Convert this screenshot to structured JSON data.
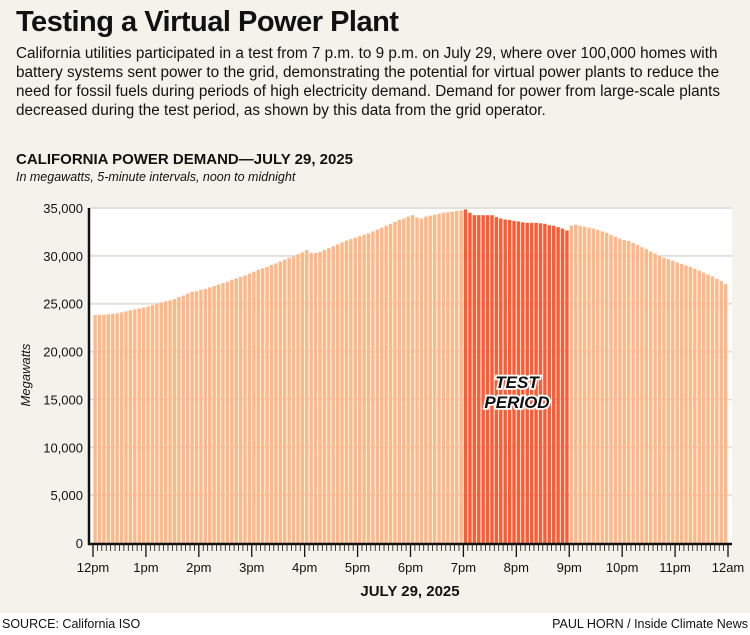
{
  "header": {
    "title": "Testing a Virtual Power Plant",
    "description": "California utilities participated in a test from 7 p.m. to 9 p.m. on July 29, where over 100,000 homes with battery systems sent power to the grid, demonstrating the potential for virtual power plants to reduce the need for fossil fuels during periods of high electricity demand. Demand for power from large-scale plants decreased during the test period, as shown by this data from the grid operator."
  },
  "footer": {
    "source": "SOURCE: California ISO",
    "credit": "PAUL HORN / Inside Climate News"
  },
  "chart_data": {
    "type": "bar",
    "title": "CALIFORNIA POWER DEMAND—JULY 29, 2025",
    "subtitle": "In megawatts, 5-minute intervals, noon to midnight",
    "xlabel": "JULY 29, 2025",
    "ylabel": "Megawatts",
    "ylim": [
      0,
      35000
    ],
    "yticks": [
      "0",
      "5,000",
      "10,000",
      "15,000",
      "20,000",
      "25,000",
      "30,000",
      "35,000"
    ],
    "ytick_values": [
      0,
      5000,
      10000,
      15000,
      20000,
      25000,
      30000,
      35000
    ],
    "xticks": [
      "12pm",
      "1pm",
      "2pm",
      "3pm",
      "4pm",
      "5pm",
      "6pm",
      "7pm",
      "8pm",
      "9pm",
      "10pm",
      "11pm",
      "12am"
    ],
    "grid": true,
    "annotation": {
      "line1": "TEST",
      "line2": "PERIOD",
      "start_index": 84,
      "end_index": 107
    },
    "colors": {
      "normal": "#ffb787",
      "test": "#ff5a32",
      "axis": "#111111",
      "grid": "#e2e2dc"
    },
    "values": [
      23800,
      23850,
      23850,
      23900,
      23950,
      24000,
      24100,
      24200,
      24300,
      24400,
      24500,
      24600,
      24700,
      24850,
      25000,
      25150,
      25250,
      25350,
      25500,
      25700,
      25850,
      26050,
      26250,
      26300,
      26450,
      26550,
      26700,
      26850,
      27000,
      27150,
      27300,
      27500,
      27650,
      27800,
      27950,
      28150,
      28350,
      28550,
      28700,
      28850,
      29050,
      29200,
      29400,
      29600,
      29800,
      29950,
      30150,
      30350,
      30600,
      30300,
      30300,
      30400,
      30600,
      30800,
      31000,
      31200,
      31400,
      31600,
      31750,
      31900,
      32050,
      32200,
      32350,
      32550,
      32750,
      32950,
      33150,
      33350,
      33550,
      33750,
      33900,
      34100,
      34250,
      34000,
      33900,
      34100,
      34200,
      34300,
      34400,
      34500,
      34550,
      34600,
      34700,
      34750,
      34850,
      34500,
      34250,
      34250,
      34250,
      34250,
      34250,
      34050,
      33900,
      33800,
      33750,
      33650,
      33600,
      33500,
      33450,
      33450,
      33450,
      33400,
      33350,
      33200,
      33150,
      33000,
      32850,
      32650,
      33150,
      33250,
      33150,
      33050,
      32950,
      32850,
      32700,
      32550,
      32400,
      32200,
      32000,
      31800,
      31650,
      31550,
      31350,
      31150,
      30900,
      30700,
      30450,
      30250,
      30000,
      29800,
      29650,
      29500,
      29300,
      29150,
      29000,
      28850,
      28650,
      28450,
      28250,
      28050,
      27850,
      27600,
      27350,
      27050
    ]
  }
}
